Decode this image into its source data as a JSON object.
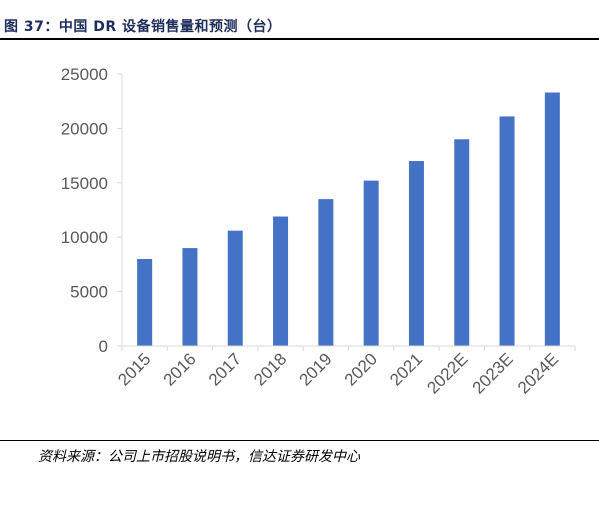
{
  "figure": {
    "title": "图 37：中国 DR 设备销售量和预测（台）",
    "source": "资料来源：公司上市招股说明书，信达证券研发中心"
  },
  "chart_data": {
    "type": "bar",
    "title": "",
    "xlabel": "",
    "ylabel": "",
    "categories": [
      "2015",
      "2016",
      "2017",
      "2018",
      "2019",
      "2020",
      "2021",
      "2022E",
      "2023E",
      "2024E"
    ],
    "values": [
      8000,
      9000,
      10600,
      11900,
      13500,
      15200,
      17000,
      19000,
      21100,
      23300
    ],
    "ylim": [
      0,
      25000
    ],
    "yticks": [
      "0",
      "5000",
      "10000",
      "15000",
      "20000",
      "25000"
    ],
    "bar_color": "#4472C4",
    "grid": false,
    "legend": "none"
  }
}
